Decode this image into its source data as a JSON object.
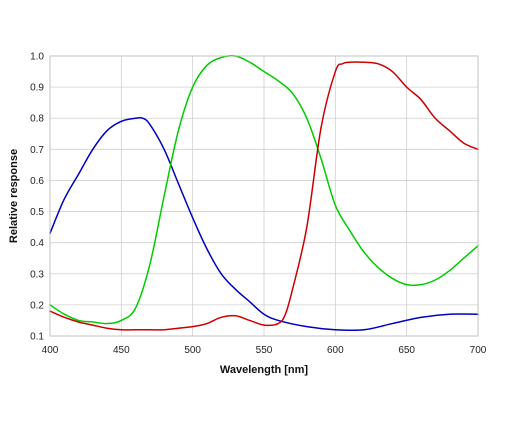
{
  "chart_data": {
    "type": "line",
    "title": "",
    "xlabel": "Wavelength [nm]",
    "ylabel": "Relative response",
    "xlim": [
      400,
      700
    ],
    "ylim": [
      0.1,
      1.0
    ],
    "xticks": [
      400,
      450,
      500,
      550,
      600,
      650,
      700
    ],
    "yticks": [
      0.1,
      0.2,
      0.3,
      0.4,
      0.5,
      0.6,
      0.7,
      0.8,
      0.9,
      1.0
    ],
    "xtick_labels": [
      "400",
      "450",
      "500",
      "550",
      "600",
      "650",
      "700"
    ],
    "ytick_labels": [
      "0.1",
      "0.2",
      "0.3",
      "0.4",
      "0.5",
      "0.6",
      "0.7",
      "0.8",
      "0.9",
      "1.0"
    ],
    "grid": true,
    "legend": "none",
    "series": [
      {
        "color": "#0000c0",
        "x": [
          400,
          410,
          420,
          430,
          440,
          450,
          460,
          465,
          470,
          480,
          490,
          500,
          510,
          520,
          530,
          540,
          550,
          560,
          580,
          600,
          620,
          640,
          660,
          680,
          700
        ],
        "y": [
          0.43,
          0.54,
          0.62,
          0.7,
          0.76,
          0.79,
          0.8,
          0.8,
          0.78,
          0.7,
          0.59,
          0.48,
          0.38,
          0.3,
          0.25,
          0.21,
          0.17,
          0.15,
          0.13,
          0.12,
          0.12,
          0.14,
          0.16,
          0.17,
          0.17
        ]
      },
      {
        "color": "#00cc00",
        "x": [
          400,
          410,
          420,
          430,
          440,
          450,
          460,
          470,
          480,
          490,
          500,
          510,
          520,
          530,
          540,
          550,
          560,
          570,
          580,
          590,
          600,
          610,
          620,
          630,
          640,
          650,
          660,
          670,
          680,
          690,
          700
        ],
        "y": [
          0.2,
          0.17,
          0.15,
          0.145,
          0.14,
          0.15,
          0.19,
          0.33,
          0.55,
          0.76,
          0.9,
          0.97,
          0.995,
          1.0,
          0.98,
          0.95,
          0.92,
          0.88,
          0.8,
          0.67,
          0.52,
          0.44,
          0.37,
          0.32,
          0.285,
          0.265,
          0.265,
          0.28,
          0.31,
          0.35,
          0.39
        ]
      },
      {
        "color": "#cc0000",
        "x": [
          400,
          410,
          420,
          430,
          440,
          450,
          460,
          470,
          480,
          490,
          500,
          510,
          520,
          530,
          540,
          550,
          560,
          565,
          570,
          580,
          590,
          600,
          605,
          610,
          620,
          630,
          640,
          650,
          660,
          670,
          680,
          690,
          700
        ],
        "y": [
          0.18,
          0.16,
          0.145,
          0.135,
          0.125,
          0.12,
          0.12,
          0.12,
          0.12,
          0.125,
          0.13,
          0.14,
          0.16,
          0.165,
          0.15,
          0.135,
          0.14,
          0.17,
          0.25,
          0.45,
          0.77,
          0.95,
          0.975,
          0.98,
          0.98,
          0.975,
          0.95,
          0.9,
          0.86,
          0.8,
          0.76,
          0.72,
          0.7
        ]
      }
    ]
  }
}
